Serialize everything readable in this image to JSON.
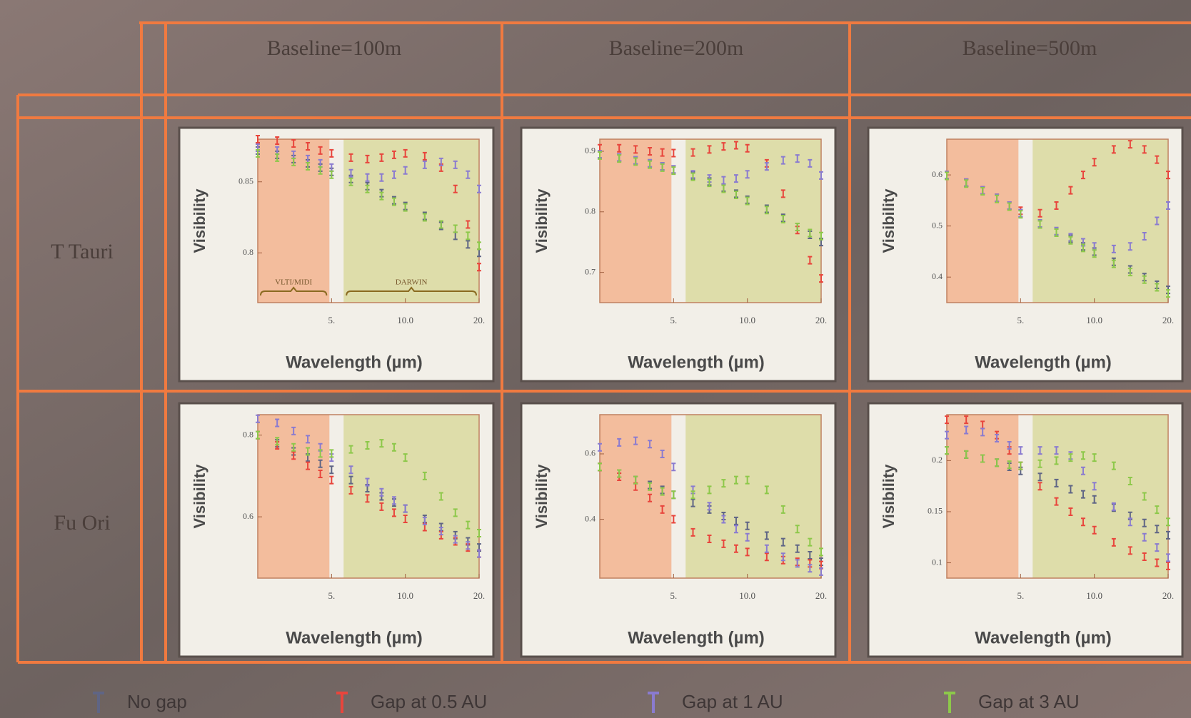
{
  "column_headers": [
    "Baseline=100m",
    "Baseline=200m",
    "Baseline=500m"
  ],
  "row_headers": [
    "T Tauri",
    "Fu Ori"
  ],
  "chart_data": [
    {
      "type": "scatter",
      "xlabel": "Wavelength (µm)",
      "ylabel": "Visibility",
      "xscale": "log",
      "xlim": [
        2.5,
        20
      ],
      "xticks": [
        {
          "value": 5,
          "label": "5."
        },
        {
          "value": 10,
          "label": "10.0"
        },
        {
          "value": 20,
          "label": "20."
        }
      ],
      "ylim": [
        0.765,
        0.88
      ],
      "yticks": [
        0.85,
        0.8
      ],
      "bands": [
        {
          "from": 2.5,
          "to": 4.9,
          "color": "#f3b08a",
          "label": "VLTI/MIDI"
        },
        {
          "from": 5.6,
          "to": 20,
          "color": "#d8d89a",
          "label": "DARWIN"
        }
      ],
      "x": [
        2.5,
        3,
        3.5,
        4,
        4.5,
        5,
        6,
        7,
        8,
        9,
        10,
        12,
        14,
        16,
        18,
        20
      ],
      "series": [
        {
          "name": "No gap",
          "color": "#5f6585",
          "values": [
            0.872,
            0.869,
            0.866,
            0.863,
            0.86,
            0.857,
            0.852,
            0.847,
            0.842,
            0.837,
            0.833,
            0.826,
            0.819,
            0.812,
            0.806,
            0.8
          ]
        },
        {
          "name": "Gap at 0.5 AU",
          "color": "#e8453c",
          "values": [
            0.88,
            0.879,
            0.877,
            0.875,
            0.872,
            0.87,
            0.867,
            0.866,
            0.867,
            0.869,
            0.87,
            0.868,
            0.86,
            0.845,
            0.82,
            0.79
          ]
        },
        {
          "name": "Gap at 1 AU",
          "color": "#8a7bd0",
          "values": [
            0.874,
            0.872,
            0.869,
            0.866,
            0.863,
            0.86,
            0.856,
            0.853,
            0.853,
            0.855,
            0.858,
            0.862,
            0.864,
            0.862,
            0.855,
            0.845
          ]
        },
        {
          "name": "Gap at 3 AU",
          "color": "#8dc84a",
          "values": [
            0.87,
            0.867,
            0.864,
            0.861,
            0.858,
            0.855,
            0.85,
            0.845,
            0.84,
            0.836,
            0.832,
            0.825,
            0.82,
            0.817,
            0.812,
            0.805
          ]
        }
      ]
    },
    {
      "type": "scatter",
      "xlabel": "Wavelength (µm)",
      "ylabel": "Visibility",
      "xscale": "log",
      "xlim": [
        2.5,
        20
      ],
      "xticks": [
        {
          "value": 5,
          "label": "5."
        },
        {
          "value": 10,
          "label": "10.0"
        },
        {
          "value": 20,
          "label": "20."
        }
      ],
      "ylim": [
        0.65,
        0.92
      ],
      "yticks": [
        0.9,
        0.8,
        0.7
      ],
      "bands": [
        {
          "from": 2.5,
          "to": 4.9,
          "color": "#f3b08a"
        },
        {
          "from": 5.6,
          "to": 20,
          "color": "#d8d89a"
        }
      ],
      "x": [
        2.5,
        3,
        3.5,
        4,
        4.5,
        5,
        6,
        7,
        8,
        9,
        10,
        12,
        14,
        16,
        18,
        20
      ],
      "series": [
        {
          "color": "#5f6585",
          "values": [
            0.895,
            0.89,
            0.885,
            0.88,
            0.875,
            0.87,
            0.86,
            0.85,
            0.84,
            0.83,
            0.82,
            0.805,
            0.79,
            0.775,
            0.762,
            0.75
          ]
        },
        {
          "color": "#e8453c",
          "values": [
            0.905,
            0.905,
            0.903,
            0.9,
            0.898,
            0.897,
            0.898,
            0.903,
            0.908,
            0.91,
            0.905,
            0.88,
            0.83,
            0.77,
            0.72,
            0.69
          ]
        },
        {
          "color": "#8a7bd0",
          "values": [
            0.895,
            0.89,
            0.885,
            0.88,
            0.875,
            0.87,
            0.862,
            0.855,
            0.852,
            0.855,
            0.862,
            0.875,
            0.885,
            0.888,
            0.88,
            0.86
          ]
        },
        {
          "color": "#8dc84a",
          "values": [
            0.893,
            0.888,
            0.883,
            0.878,
            0.873,
            0.868,
            0.858,
            0.848,
            0.838,
            0.828,
            0.818,
            0.803,
            0.788,
            0.775,
            0.765,
            0.76
          ]
        }
      ]
    },
    {
      "type": "scatter",
      "xlabel": "Wavelength (µm)",
      "ylabel": "Visibility",
      "xscale": "log",
      "xlim": [
        2.5,
        20
      ],
      "xticks": [
        {
          "value": 5,
          "label": "5."
        },
        {
          "value": 10,
          "label": "10.0"
        },
        {
          "value": 20,
          "label": "20."
        }
      ],
      "ylim": [
        0.35,
        0.67
      ],
      "yticks": [
        0.6,
        0.5,
        0.4
      ],
      "bands": [
        {
          "from": 2.5,
          "to": 4.9,
          "color": "#f3b08a"
        },
        {
          "from": 5.6,
          "to": 20,
          "color": "#d8d89a"
        }
      ],
      "x": [
        2.5,
        3,
        3.5,
        4,
        4.5,
        5,
        6,
        7,
        8,
        9,
        10,
        12,
        14,
        16,
        18,
        20
      ],
      "series": [
        {
          "color": "#5f6585",
          "values": [
            0.6,
            0.585,
            0.57,
            0.555,
            0.54,
            0.525,
            0.505,
            0.49,
            0.475,
            0.46,
            0.45,
            0.43,
            0.415,
            0.4,
            0.385,
            0.375
          ]
        },
        {
          "color": "#e8453c",
          "values": [
            0.6,
            0.585,
            0.57,
            0.555,
            0.54,
            0.53,
            0.525,
            0.54,
            0.57,
            0.6,
            0.625,
            0.65,
            0.66,
            0.65,
            0.63,
            0.6
          ]
        },
        {
          "color": "#8a7bd0",
          "values": [
            0.6,
            0.585,
            0.57,
            0.555,
            0.54,
            0.525,
            0.505,
            0.49,
            0.478,
            0.468,
            0.46,
            0.455,
            0.46,
            0.48,
            0.51,
            0.54
          ]
        },
        {
          "color": "#8dc84a",
          "values": [
            0.598,
            0.583,
            0.568,
            0.553,
            0.538,
            0.523,
            0.503,
            0.487,
            0.472,
            0.457,
            0.446,
            0.426,
            0.41,
            0.395,
            0.38,
            0.368
          ]
        }
      ]
    },
    {
      "type": "scatter",
      "xlabel": "Wavelength (µm)",
      "ylabel": "Visibility",
      "xscale": "log",
      "xlim": [
        2.5,
        20
      ],
      "xticks": [
        {
          "value": 5,
          "label": "5."
        },
        {
          "value": 10,
          "label": "10.0"
        },
        {
          "value": 20,
          "label": "20."
        }
      ],
      "ylim": [
        0.45,
        0.85
      ],
      "yticks": [
        0.8,
        0.6
      ],
      "bands": [
        {
          "from": 2.5,
          "to": 4.9,
          "color": "#f3b08a"
        },
        {
          "from": 5.6,
          "to": 20,
          "color": "#d8d89a"
        }
      ],
      "x": [
        2.5,
        3,
        3.5,
        4,
        4.5,
        5,
        6,
        7,
        8,
        9,
        10,
        12,
        14,
        16,
        18,
        20
      ],
      "series": [
        {
          "color": "#5f6585",
          "values": [
            0.8,
            0.78,
            0.76,
            0.745,
            0.73,
            0.715,
            0.69,
            0.67,
            0.65,
            0.635,
            0.62,
            0.595,
            0.575,
            0.555,
            0.54,
            0.525
          ]
        },
        {
          "color": "#e8453c",
          "values": [
            0.8,
            0.775,
            0.75,
            0.725,
            0.705,
            0.69,
            0.665,
            0.645,
            0.625,
            0.61,
            0.595,
            0.575,
            0.555,
            0.54,
            0.525,
            0.51
          ]
        },
        {
          "color": "#8a7bd0",
          "values": [
            0.84,
            0.83,
            0.81,
            0.79,
            0.77,
            0.745,
            0.715,
            0.685,
            0.66,
            0.64,
            0.62,
            0.59,
            0.565,
            0.545,
            0.53,
            0.51
          ]
        },
        {
          "color": "#8dc84a",
          "values": [
            0.8,
            0.785,
            0.77,
            0.76,
            0.755,
            0.755,
            0.765,
            0.775,
            0.78,
            0.77,
            0.745,
            0.7,
            0.65,
            0.61,
            0.58,
            0.56
          ]
        }
      ]
    },
    {
      "type": "scatter",
      "xlabel": "Wavelength (µm)",
      "ylabel": "Visibility",
      "xscale": "log",
      "xlim": [
        2.5,
        20
      ],
      "xticks": [
        {
          "value": 5,
          "label": "5."
        },
        {
          "value": 10,
          "label": "10.0"
        },
        {
          "value": 20,
          "label": "20."
        }
      ],
      "ylim": [
        0.22,
        0.72
      ],
      "yticks": [
        0.6,
        0.4
      ],
      "bands": [
        {
          "from": 2.5,
          "to": 4.9,
          "color": "#f3b08a"
        },
        {
          "from": 5.6,
          "to": 20,
          "color": "#d8d89a"
        }
      ],
      "x": [
        2.5,
        3,
        3.5,
        4,
        4.5,
        5,
        6,
        7,
        8,
        9,
        10,
        12,
        14,
        16,
        18,
        20
      ],
      "series": [
        {
          "color": "#5f6585",
          "values": [
            0.56,
            0.54,
            0.52,
            0.505,
            0.49,
            0.475,
            0.45,
            0.43,
            0.41,
            0.395,
            0.38,
            0.35,
            0.33,
            0.31,
            0.29,
            0.27
          ]
        },
        {
          "color": "#e8453c",
          "values": [
            0.56,
            0.53,
            0.5,
            0.465,
            0.43,
            0.4,
            0.36,
            0.34,
            0.325,
            0.31,
            0.3,
            0.285,
            0.275,
            0.27,
            0.265,
            0.26
          ]
        },
        {
          "color": "#8a7bd0",
          "values": [
            0.62,
            0.635,
            0.64,
            0.63,
            0.6,
            0.56,
            0.49,
            0.44,
            0.4,
            0.37,
            0.345,
            0.31,
            0.285,
            0.265,
            0.25,
            0.24
          ]
        },
        {
          "color": "#8dc84a",
          "values": [
            0.56,
            0.54,
            0.52,
            0.5,
            0.485,
            0.475,
            0.475,
            0.49,
            0.51,
            0.52,
            0.52,
            0.49,
            0.43,
            0.37,
            0.33,
            0.3
          ]
        }
      ]
    },
    {
      "type": "scatter",
      "xlabel": "Wavelength (µm)",
      "ylabel": "Visibility",
      "xscale": "log",
      "xlim": [
        2.5,
        20
      ],
      "xticks": [
        {
          "value": 5,
          "label": "5."
        },
        {
          "value": 10,
          "label": "10.0"
        },
        {
          "value": 20,
          "label": "20."
        }
      ],
      "ylim": [
        0.085,
        0.245
      ],
      "yticks": [
        0.2,
        0.15,
        0.1
      ],
      "bands": [
        {
          "from": 2.5,
          "to": 4.9,
          "color": "#f3b08a"
        },
        {
          "from": 5.6,
          "to": 20,
          "color": "#d8d89a"
        }
      ],
      "x": [
        2.5,
        3,
        3.5,
        4,
        4.5,
        5,
        6,
        7,
        8,
        9,
        10,
        12,
        14,
        16,
        18,
        20
      ],
      "series": [
        {
          "color": "#5f6585",
          "values": [
            0.21,
            0.206,
            0.202,
            0.198,
            0.194,
            0.19,
            0.184,
            0.178,
            0.172,
            0.167,
            0.162,
            0.154,
            0.146,
            0.139,
            0.133,
            0.127
          ]
        },
        {
          "color": "#e8453c",
          "values": [
            0.24,
            0.24,
            0.235,
            0.225,
            0.21,
            0.195,
            0.175,
            0.16,
            0.15,
            0.14,
            0.132,
            0.12,
            0.112,
            0.106,
            0.1,
            0.097
          ]
        },
        {
          "color": "#8a7bd0",
          "values": [
            0.225,
            0.23,
            0.228,
            0.222,
            0.215,
            0.21,
            0.21,
            0.21,
            0.205,
            0.19,
            0.175,
            0.155,
            0.14,
            0.125,
            0.115,
            0.105
          ]
        },
        {
          "color": "#8dc84a",
          "values": [
            0.21,
            0.206,
            0.202,
            0.198,
            0.196,
            0.195,
            0.197,
            0.2,
            0.203,
            0.205,
            0.203,
            0.195,
            0.18,
            0.165,
            0.152,
            0.14
          ]
        }
      ]
    }
  ]
}
